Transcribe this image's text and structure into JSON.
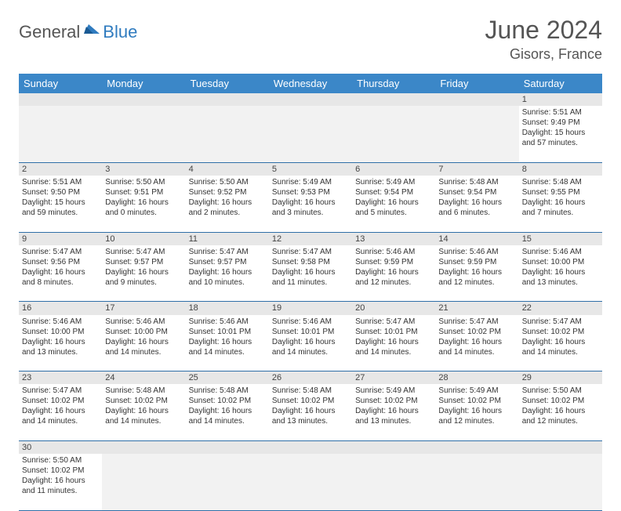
{
  "logo": {
    "general": "General",
    "blue": "Blue"
  },
  "title": "June 2024",
  "location": "Gisors, France",
  "colors": {
    "header_bg": "#3b87c8",
    "header_text": "#ffffff",
    "daynum_bg": "#e7e7e7",
    "row_border": "#2f6fa8",
    "logo_blue": "#2f7bbf",
    "text_gray": "#555555"
  },
  "weekdays": [
    "Sunday",
    "Monday",
    "Tuesday",
    "Wednesday",
    "Thursday",
    "Friday",
    "Saturday"
  ],
  "weeks": [
    [
      null,
      null,
      null,
      null,
      null,
      null,
      {
        "n": "1",
        "sr": "Sunrise: 5:51 AM",
        "ss": "Sunset: 9:49 PM",
        "d1": "Daylight: 15 hours",
        "d2": "and 57 minutes."
      }
    ],
    [
      {
        "n": "2",
        "sr": "Sunrise: 5:51 AM",
        "ss": "Sunset: 9:50 PM",
        "d1": "Daylight: 15 hours",
        "d2": "and 59 minutes."
      },
      {
        "n": "3",
        "sr": "Sunrise: 5:50 AM",
        "ss": "Sunset: 9:51 PM",
        "d1": "Daylight: 16 hours",
        "d2": "and 0 minutes."
      },
      {
        "n": "4",
        "sr": "Sunrise: 5:50 AM",
        "ss": "Sunset: 9:52 PM",
        "d1": "Daylight: 16 hours",
        "d2": "and 2 minutes."
      },
      {
        "n": "5",
        "sr": "Sunrise: 5:49 AM",
        "ss": "Sunset: 9:53 PM",
        "d1": "Daylight: 16 hours",
        "d2": "and 3 minutes."
      },
      {
        "n": "6",
        "sr": "Sunrise: 5:49 AM",
        "ss": "Sunset: 9:54 PM",
        "d1": "Daylight: 16 hours",
        "d2": "and 5 minutes."
      },
      {
        "n": "7",
        "sr": "Sunrise: 5:48 AM",
        "ss": "Sunset: 9:54 PM",
        "d1": "Daylight: 16 hours",
        "d2": "and 6 minutes."
      },
      {
        "n": "8",
        "sr": "Sunrise: 5:48 AM",
        "ss": "Sunset: 9:55 PM",
        "d1": "Daylight: 16 hours",
        "d2": "and 7 minutes."
      }
    ],
    [
      {
        "n": "9",
        "sr": "Sunrise: 5:47 AM",
        "ss": "Sunset: 9:56 PM",
        "d1": "Daylight: 16 hours",
        "d2": "and 8 minutes."
      },
      {
        "n": "10",
        "sr": "Sunrise: 5:47 AM",
        "ss": "Sunset: 9:57 PM",
        "d1": "Daylight: 16 hours",
        "d2": "and 9 minutes."
      },
      {
        "n": "11",
        "sr": "Sunrise: 5:47 AM",
        "ss": "Sunset: 9:57 PM",
        "d1": "Daylight: 16 hours",
        "d2": "and 10 minutes."
      },
      {
        "n": "12",
        "sr": "Sunrise: 5:47 AM",
        "ss": "Sunset: 9:58 PM",
        "d1": "Daylight: 16 hours",
        "d2": "and 11 minutes."
      },
      {
        "n": "13",
        "sr": "Sunrise: 5:46 AM",
        "ss": "Sunset: 9:59 PM",
        "d1": "Daylight: 16 hours",
        "d2": "and 12 minutes."
      },
      {
        "n": "14",
        "sr": "Sunrise: 5:46 AM",
        "ss": "Sunset: 9:59 PM",
        "d1": "Daylight: 16 hours",
        "d2": "and 12 minutes."
      },
      {
        "n": "15",
        "sr": "Sunrise: 5:46 AM",
        "ss": "Sunset: 10:00 PM",
        "d1": "Daylight: 16 hours",
        "d2": "and 13 minutes."
      }
    ],
    [
      {
        "n": "16",
        "sr": "Sunrise: 5:46 AM",
        "ss": "Sunset: 10:00 PM",
        "d1": "Daylight: 16 hours",
        "d2": "and 13 minutes."
      },
      {
        "n": "17",
        "sr": "Sunrise: 5:46 AM",
        "ss": "Sunset: 10:00 PM",
        "d1": "Daylight: 16 hours",
        "d2": "and 14 minutes."
      },
      {
        "n": "18",
        "sr": "Sunrise: 5:46 AM",
        "ss": "Sunset: 10:01 PM",
        "d1": "Daylight: 16 hours",
        "d2": "and 14 minutes."
      },
      {
        "n": "19",
        "sr": "Sunrise: 5:46 AM",
        "ss": "Sunset: 10:01 PM",
        "d1": "Daylight: 16 hours",
        "d2": "and 14 minutes."
      },
      {
        "n": "20",
        "sr": "Sunrise: 5:47 AM",
        "ss": "Sunset: 10:01 PM",
        "d1": "Daylight: 16 hours",
        "d2": "and 14 minutes."
      },
      {
        "n": "21",
        "sr": "Sunrise: 5:47 AM",
        "ss": "Sunset: 10:02 PM",
        "d1": "Daylight: 16 hours",
        "d2": "and 14 minutes."
      },
      {
        "n": "22",
        "sr": "Sunrise: 5:47 AM",
        "ss": "Sunset: 10:02 PM",
        "d1": "Daylight: 16 hours",
        "d2": "and 14 minutes."
      }
    ],
    [
      {
        "n": "23",
        "sr": "Sunrise: 5:47 AM",
        "ss": "Sunset: 10:02 PM",
        "d1": "Daylight: 16 hours",
        "d2": "and 14 minutes."
      },
      {
        "n": "24",
        "sr": "Sunrise: 5:48 AM",
        "ss": "Sunset: 10:02 PM",
        "d1": "Daylight: 16 hours",
        "d2": "and 14 minutes."
      },
      {
        "n": "25",
        "sr": "Sunrise: 5:48 AM",
        "ss": "Sunset: 10:02 PM",
        "d1": "Daylight: 16 hours",
        "d2": "and 14 minutes."
      },
      {
        "n": "26",
        "sr": "Sunrise: 5:48 AM",
        "ss": "Sunset: 10:02 PM",
        "d1": "Daylight: 16 hours",
        "d2": "and 13 minutes."
      },
      {
        "n": "27",
        "sr": "Sunrise: 5:49 AM",
        "ss": "Sunset: 10:02 PM",
        "d1": "Daylight: 16 hours",
        "d2": "and 13 minutes."
      },
      {
        "n": "28",
        "sr": "Sunrise: 5:49 AM",
        "ss": "Sunset: 10:02 PM",
        "d1": "Daylight: 16 hours",
        "d2": "and 12 minutes."
      },
      {
        "n": "29",
        "sr": "Sunrise: 5:50 AM",
        "ss": "Sunset: 10:02 PM",
        "d1": "Daylight: 16 hours",
        "d2": "and 12 minutes."
      }
    ],
    [
      {
        "n": "30",
        "sr": "Sunrise: 5:50 AM",
        "ss": "Sunset: 10:02 PM",
        "d1": "Daylight: 16 hours",
        "d2": "and 11 minutes."
      },
      null,
      null,
      null,
      null,
      null,
      null
    ]
  ]
}
